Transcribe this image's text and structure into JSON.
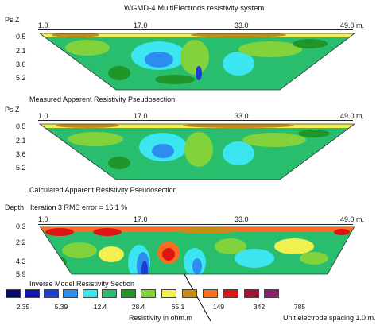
{
  "title": "WGMD-4 MultiElectrods resistivity system",
  "panels": [
    {
      "key": "measured",
      "depth_label": "Ps.Z",
      "top_ticks": [
        "1.0",
        "17.0",
        "33.0",
        "49.0 m."
      ],
      "depth_ticks": [
        "0.5",
        "2.1",
        "3.6",
        "5.2"
      ],
      "caption": "Measured Apparent Resistivity Pseudosection"
    },
    {
      "key": "calculated",
      "depth_label": "Ps.Z",
      "top_ticks": [
        "1.0",
        "17.0",
        "33.0",
        "49.0 m."
      ],
      "depth_ticks": [
        "0.5",
        "2.1",
        "3.6",
        "5.2"
      ],
      "caption": "Calculated Apparent Resistivity Pseudosection"
    },
    {
      "key": "inverse",
      "depth_label": "Depth",
      "iteration_text": "Iteration 3 RMS error = 16.1 %",
      "top_ticks": [
        "1.0",
        "17.0",
        "33.0",
        "49.0 m."
      ],
      "depth_ticks": [
        "0.3",
        "2.2",
        "4.3",
        "5.9"
      ],
      "caption": "Inverse Model Resistivity Section"
    }
  ],
  "legend": {
    "colors": [
      "#0a0a6e",
      "#1414b4",
      "#1e3cd2",
      "#2d8cf0",
      "#3ce6f0",
      "#28be6e",
      "#1e9628",
      "#82d23c",
      "#f0f050",
      "#c88c14",
      "#ff6e1e",
      "#dc1414",
      "#a0142d",
      "#8c1e6e"
    ],
    "labels": [
      "2.35",
      "5.39",
      "12.4",
      "28.4",
      "65.1",
      "149",
      "342",
      "785"
    ],
    "unit_label": "Resistivity in ohm.m",
    "spacing_label": "Unit electrode spacing 1.0 m."
  }
}
